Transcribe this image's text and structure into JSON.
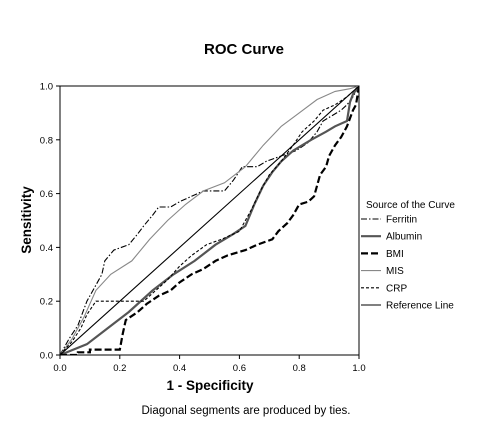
{
  "chart_data": {
    "type": "line",
    "title": "ROC Curve",
    "xlabel": "1 - Specificity",
    "ylabel": "Sensitivity",
    "xlim": [
      0,
      1
    ],
    "ylim": [
      0,
      1
    ],
    "x_ticks": [
      "0.0",
      "0.2",
      "0.4",
      "0.6",
      "0.8",
      "1.0"
    ],
    "y_ticks": [
      "0.0",
      "0.2",
      "0.4",
      "0.6",
      "0.8",
      "1.0"
    ],
    "grid": false,
    "legend": {
      "title": "Source of the Curve",
      "placement": "right"
    },
    "footnote": "Diagonal segments are produced by ties.",
    "series": [
      {
        "name": "Ferritin",
        "style": "dash-dot",
        "color": "#000000",
        "points": [
          [
            0,
            0
          ],
          [
            0.03,
            0.06
          ],
          [
            0.06,
            0.11
          ],
          [
            0.09,
            0.2
          ],
          [
            0.12,
            0.26
          ],
          [
            0.14,
            0.3
          ],
          [
            0.15,
            0.35
          ],
          [
            0.18,
            0.39
          ],
          [
            0.23,
            0.41
          ],
          [
            0.26,
            0.45
          ],
          [
            0.28,
            0.48
          ],
          [
            0.31,
            0.52
          ],
          [
            0.33,
            0.55
          ],
          [
            0.37,
            0.55
          ],
          [
            0.4,
            0.57
          ],
          [
            0.44,
            0.59
          ],
          [
            0.48,
            0.61
          ],
          [
            0.55,
            0.61
          ],
          [
            0.58,
            0.65
          ],
          [
            0.61,
            0.7
          ],
          [
            0.66,
            0.7
          ],
          [
            0.69,
            0.72
          ],
          [
            0.74,
            0.74
          ],
          [
            0.79,
            0.76
          ],
          [
            0.83,
            0.79
          ],
          [
            0.86,
            0.83
          ],
          [
            0.88,
            0.87
          ],
          [
            0.91,
            0.89
          ],
          [
            0.94,
            0.91
          ],
          [
            0.96,
            0.93
          ],
          [
            0.98,
            0.96
          ],
          [
            1,
            1
          ]
        ]
      },
      {
        "name": "Albumin",
        "style": "solid-thick",
        "color": "#555555",
        "points": [
          [
            0,
            0
          ],
          [
            0.09,
            0.04
          ],
          [
            0.16,
            0.1
          ],
          [
            0.23,
            0.16
          ],
          [
            0.31,
            0.24
          ],
          [
            0.38,
            0.3
          ],
          [
            0.45,
            0.35
          ],
          [
            0.52,
            0.41
          ],
          [
            0.58,
            0.45
          ],
          [
            0.62,
            0.48
          ],
          [
            0.65,
            0.56
          ],
          [
            0.68,
            0.63
          ],
          [
            0.71,
            0.68
          ],
          [
            0.74,
            0.72
          ],
          [
            0.78,
            0.76
          ],
          [
            0.84,
            0.8
          ],
          [
            0.89,
            0.83
          ],
          [
            0.92,
            0.85
          ],
          [
            0.96,
            0.87
          ],
          [
            0.97,
            0.94
          ],
          [
            0.98,
            0.97
          ],
          [
            1,
            1
          ]
        ]
      },
      {
        "name": "BMI",
        "style": "long-dash-thick",
        "color": "#000000",
        "points": [
          [
            0,
            0
          ],
          [
            0.06,
            0
          ],
          [
            0.06,
            0.01
          ],
          [
            0.1,
            0.01
          ],
          [
            0.1,
            0.02
          ],
          [
            0.2,
            0.02
          ],
          [
            0.21,
            0.08
          ],
          [
            0.22,
            0.13
          ],
          [
            0.26,
            0.16
          ],
          [
            0.29,
            0.19
          ],
          [
            0.33,
            0.22
          ],
          [
            0.37,
            0.24
          ],
          [
            0.4,
            0.27
          ],
          [
            0.44,
            0.3
          ],
          [
            0.48,
            0.32
          ],
          [
            0.52,
            0.35
          ],
          [
            0.56,
            0.37
          ],
          [
            0.62,
            0.39
          ],
          [
            0.66,
            0.41
          ],
          [
            0.71,
            0.43
          ],
          [
            0.73,
            0.46
          ],
          [
            0.76,
            0.49
          ],
          [
            0.78,
            0.52
          ],
          [
            0.8,
            0.56
          ],
          [
            0.83,
            0.57
          ],
          [
            0.85,
            0.59
          ],
          [
            0.86,
            0.63
          ],
          [
            0.87,
            0.67
          ],
          [
            0.89,
            0.7
          ],
          [
            0.9,
            0.74
          ],
          [
            0.92,
            0.78
          ],
          [
            0.94,
            0.81
          ],
          [
            0.95,
            0.83
          ],
          [
            0.96,
            0.85
          ],
          [
            0.97,
            0.88
          ],
          [
            0.98,
            0.91
          ],
          [
            0.99,
            0.93
          ],
          [
            1,
            1
          ]
        ]
      },
      {
        "name": "MIS",
        "style": "solid-thin",
        "color": "#888888",
        "points": [
          [
            0,
            0
          ],
          [
            0.04,
            0.06
          ],
          [
            0.08,
            0.14
          ],
          [
            0.12,
            0.24
          ],
          [
            0.17,
            0.3
          ],
          [
            0.24,
            0.35
          ],
          [
            0.3,
            0.43
          ],
          [
            0.36,
            0.5
          ],
          [
            0.42,
            0.56
          ],
          [
            0.48,
            0.61
          ],
          [
            0.55,
            0.64
          ],
          [
            0.62,
            0.7
          ],
          [
            0.68,
            0.78
          ],
          [
            0.74,
            0.85
          ],
          [
            0.8,
            0.9
          ],
          [
            0.86,
            0.95
          ],
          [
            0.92,
            0.98
          ],
          [
            0.97,
            0.99
          ],
          [
            1,
            1
          ]
        ]
      },
      {
        "name": "CRP",
        "style": "short-dash",
        "color": "#000000",
        "points": [
          [
            0,
            0
          ],
          [
            0.04,
            0.05
          ],
          [
            0.07,
            0.1
          ],
          [
            0.09,
            0.15
          ],
          [
            0.12,
            0.2
          ],
          [
            0.18,
            0.2
          ],
          [
            0.28,
            0.2
          ],
          [
            0.33,
            0.25
          ],
          [
            0.36,
            0.28
          ],
          [
            0.4,
            0.33
          ],
          [
            0.44,
            0.37
          ],
          [
            0.49,
            0.41
          ],
          [
            0.54,
            0.43
          ],
          [
            0.6,
            0.46
          ],
          [
            0.64,
            0.54
          ],
          [
            0.67,
            0.61
          ],
          [
            0.7,
            0.67
          ],
          [
            0.74,
            0.72
          ],
          [
            0.78,
            0.78
          ],
          [
            0.81,
            0.83
          ],
          [
            0.85,
            0.87
          ],
          [
            0.88,
            0.91
          ],
          [
            0.92,
            0.93
          ],
          [
            0.96,
            0.96
          ],
          [
            1,
            1
          ]
        ]
      },
      {
        "name": "Reference Line",
        "style": "solid-thin",
        "color": "#000000",
        "points": [
          [
            0,
            0
          ],
          [
            1,
            1
          ]
        ]
      }
    ]
  }
}
